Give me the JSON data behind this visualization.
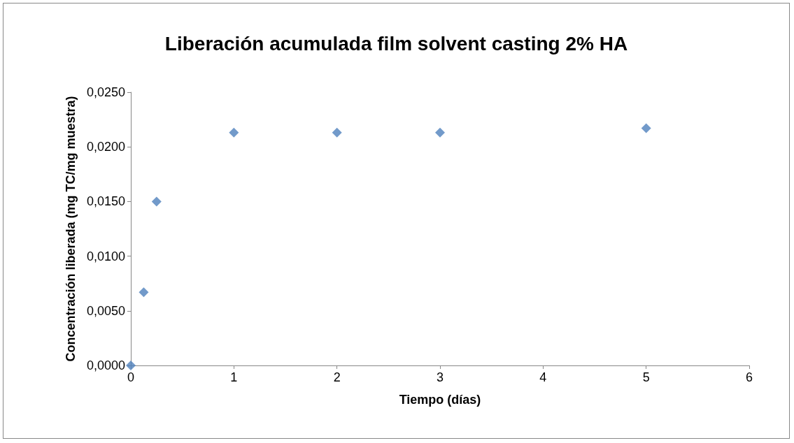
{
  "chart_data": {
    "type": "scatter",
    "title": "Liberación acumulada film solvent casting 2% HA",
    "xlabel": "Tiempo (días)",
    "ylabel": "Concentración liberada (mg TC/mg muestra)",
    "x": [
      0,
      0.125,
      0.25,
      1,
      2,
      3,
      5
    ],
    "series": [
      {
        "color": "#4f81bd",
        "values": [
          0,
          0.0067,
          0.015,
          0.0213,
          0.0213,
          0.0213,
          0.0217
        ]
      }
    ],
    "xlim": [
      0,
      6
    ],
    "xticks": [
      0,
      1,
      2,
      3,
      4,
      5,
      6
    ],
    "ylim": [
      0,
      0.025
    ],
    "yticks": [
      {
        "value": 0,
        "label": "0,0000"
      },
      {
        "value": 0.005,
        "label": "0,0050"
      },
      {
        "value": 0.01,
        "label": "0,0100"
      },
      {
        "value": 0.015,
        "label": "0,0150"
      },
      {
        "value": 0.02,
        "label": "0,0200"
      },
      {
        "value": 0.025,
        "label": "0,0250"
      }
    ],
    "marker": "diamond",
    "grid": false
  }
}
